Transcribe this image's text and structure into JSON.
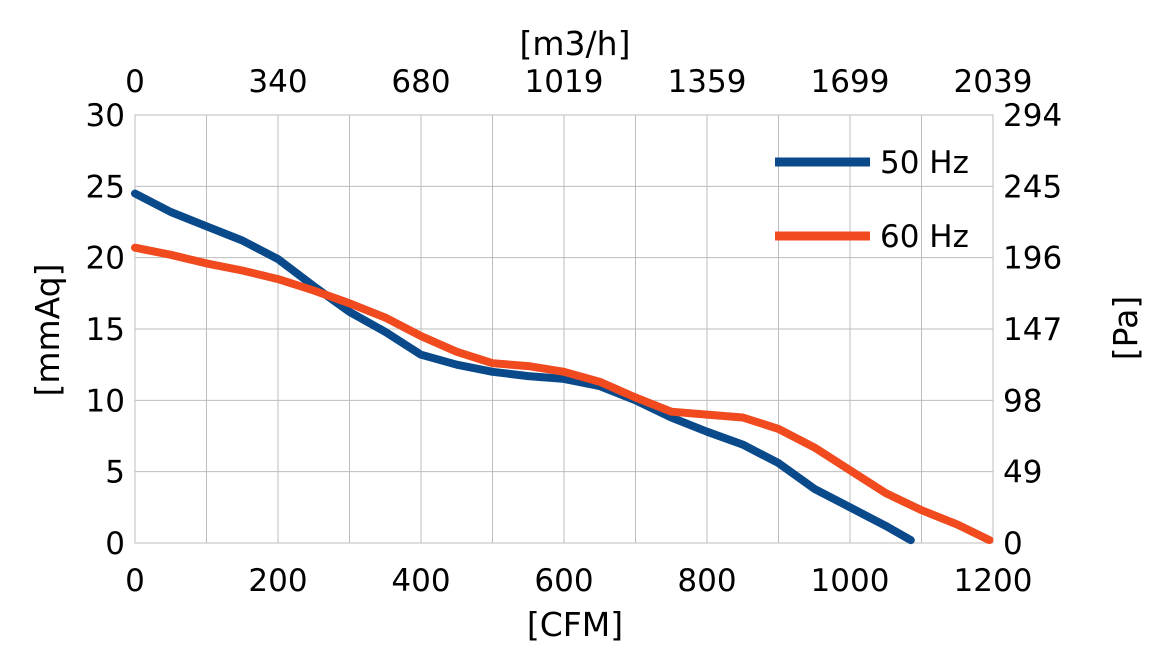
{
  "chart_data": {
    "type": "line",
    "xlabel": "[CFM]",
    "ylabel": "[mmAq]",
    "x2label": "[m3/h]",
    "y2label": "[Pa]",
    "xlim": [
      0,
      1200
    ],
    "ylim": [
      0,
      30
    ],
    "x_ticks": [
      "0",
      "200",
      "400",
      "600",
      "800",
      "1000",
      "1200"
    ],
    "y_ticks": [
      "0",
      "5",
      "10",
      "15",
      "20",
      "25",
      "30"
    ],
    "x2_ticks": [
      "0",
      "340",
      "680",
      "1019",
      "1359",
      "1699",
      "2039"
    ],
    "y2_ticks": [
      "0",
      "49",
      "98",
      "147",
      "196",
      "245",
      "294"
    ],
    "grid": true,
    "legend_position": "top-right",
    "series": [
      {
        "name": "50 Hz",
        "color": "#0a4a8a",
        "x": [
          0,
          50,
          100,
          150,
          200,
          250,
          300,
          350,
          400,
          450,
          500,
          550,
          600,
          650,
          700,
          750,
          800,
          850,
          900,
          950,
          1000,
          1050,
          1085
        ],
        "y": [
          24.5,
          23.2,
          22.2,
          21.2,
          19.9,
          18.0,
          16.2,
          14.8,
          13.2,
          12.5,
          12.0,
          11.7,
          11.5,
          11.0,
          10.0,
          8.8,
          7.8,
          6.9,
          5.6,
          3.8,
          2.5,
          1.2,
          0.2
        ]
      },
      {
        "name": "60 Hz",
        "color": "#f04a1e",
        "x": [
          0,
          50,
          100,
          150,
          200,
          250,
          300,
          350,
          400,
          450,
          500,
          550,
          600,
          650,
          700,
          750,
          800,
          850,
          900,
          950,
          1000,
          1050,
          1100,
          1150,
          1195
        ],
        "y": [
          20.7,
          20.2,
          19.6,
          19.1,
          18.5,
          17.7,
          16.8,
          15.8,
          14.5,
          13.4,
          12.6,
          12.4,
          12.0,
          11.3,
          10.2,
          9.2,
          9.0,
          8.8,
          8.0,
          6.7,
          5.1,
          3.5,
          2.3,
          1.3,
          0.2
        ]
      }
    ]
  }
}
